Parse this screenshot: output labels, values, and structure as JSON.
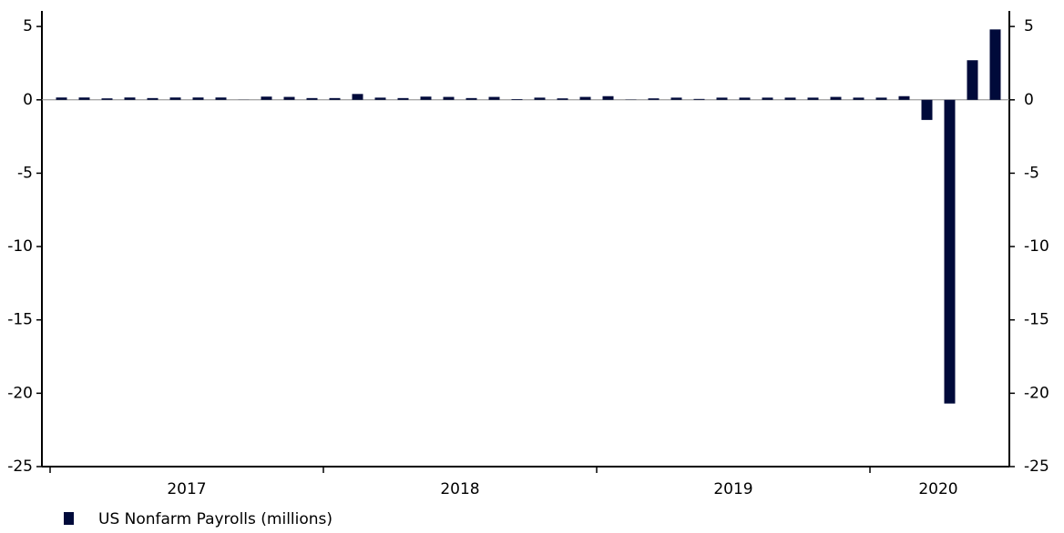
{
  "chart_data": {
    "type": "bar",
    "legend": "US Nonfarm Payrolls (millions)",
    "color": "#000a3a",
    "categories": [
      null,
      null,
      null,
      null,
      null,
      null,
      null,
      null,
      null,
      null,
      null,
      null,
      null,
      null,
      null,
      null,
      null,
      null,
      null,
      null,
      null,
      null,
      null,
      null,
      null,
      null,
      null,
      null,
      null,
      null,
      null,
      null,
      null,
      null,
      null,
      null,
      null,
      null,
      null,
      null,
      null,
      null
    ],
    "year_groups": [
      {
        "label": "2017",
        "months": 12
      },
      {
        "label": "2018",
        "months": 12
      },
      {
        "label": "2019",
        "months": 12
      },
      {
        "label": "2020",
        "months": 6
      }
    ],
    "values": [
      0.16,
      0.16,
      0.1,
      0.16,
      0.12,
      0.16,
      0.16,
      0.16,
      0.01,
      0.22,
      0.2,
      0.12,
      0.12,
      0.4,
      0.15,
      0.12,
      0.22,
      0.2,
      0.12,
      0.2,
      0.05,
      0.15,
      0.1,
      0.2,
      0.25,
      0.02,
      0.1,
      0.15,
      0.06,
      0.15,
      0.15,
      0.15,
      0.15,
      0.15,
      0.2,
      0.15,
      0.15,
      0.25,
      -1.37,
      -20.7,
      2.7,
      4.8
    ],
    "ylim": [
      -25,
      6
    ],
    "yticks": [
      -25,
      -20,
      -15,
      -10,
      -5,
      0,
      5
    ],
    "y2lim": [
      -25,
      6
    ],
    "y2ticks": [
      -25,
      -20,
      -15,
      -10,
      -5,
      0,
      5
    ]
  }
}
